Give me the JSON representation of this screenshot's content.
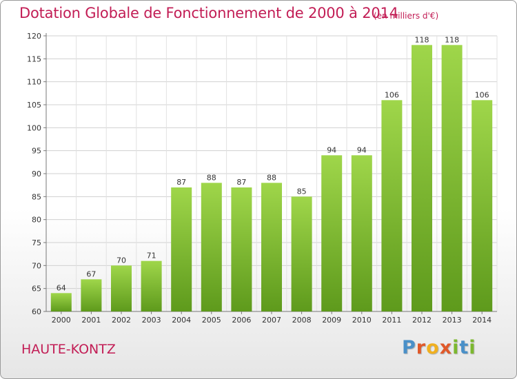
{
  "header": {
    "title": "Dotation Globale de Fonctionnement de 2000 à 2014",
    "unit": "(en milliers d'€)"
  },
  "footer": {
    "commune": "HAUTE-KONTZ",
    "logo_letters": [
      "P",
      "r",
      "o",
      "x",
      "i",
      "t",
      "i"
    ],
    "logo_colors": [
      "#4a90c8",
      "#e0592a",
      "#f0b020",
      "#e0592a",
      "#7cb82f",
      "#4a90c8",
      "#7cb82f"
    ]
  },
  "chart_data": {
    "type": "bar",
    "title": "Dotation Globale de Fonctionnement de 2000 à 2014",
    "subtitle": "(en milliers d'€)",
    "categories": [
      "2000",
      "2001",
      "2002",
      "2003",
      "2004",
      "2005",
      "2006",
      "2007",
      "2008",
      "2009",
      "2010",
      "2011",
      "2012",
      "2013",
      "2014"
    ],
    "values": [
      64,
      67,
      70,
      71,
      87,
      88,
      87,
      88,
      85,
      94,
      94,
      106,
      118,
      118,
      106
    ],
    "ylim": [
      60,
      120
    ],
    "yticks": [
      60,
      65,
      70,
      75,
      80,
      85,
      90,
      95,
      100,
      105,
      110,
      115,
      120
    ],
    "grid": true,
    "bar_color_top": "#9fd64a",
    "bar_color_bottom": "#5e9a1c"
  }
}
